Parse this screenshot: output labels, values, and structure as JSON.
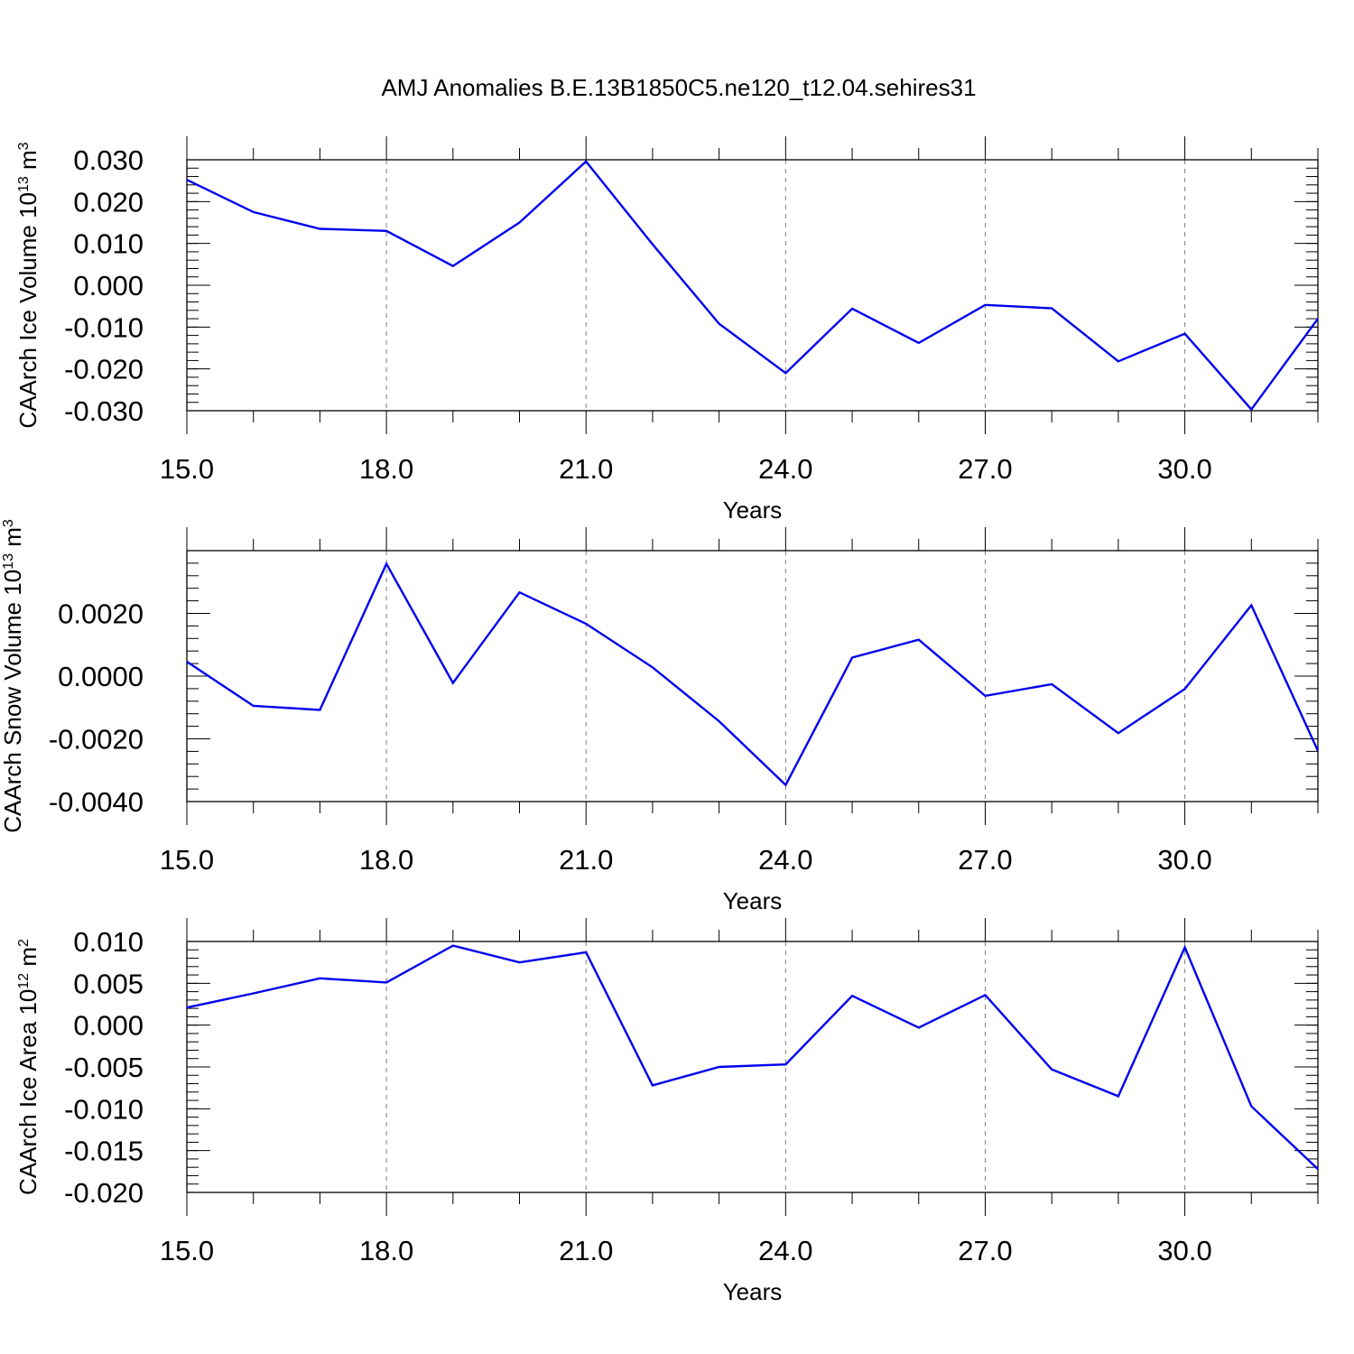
{
  "title": "AMJ Anomalies B.E.13B1850C5.ne120_t12.04.sehires31",
  "colors": {
    "series": "#0000ee",
    "frame": "#000000",
    "grid": "#808080"
  },
  "chart_data": [
    {
      "type": "line",
      "xlabel": "Years",
      "ylabel": {
        "main": "CAArch Ice Volume 10",
        "exp": "13",
        "unit": " m",
        "unit_exp": "3"
      },
      "xlim": [
        15,
        32
      ],
      "ylim": [
        -0.03,
        0.03
      ],
      "x_major_ticks": [
        15,
        18,
        21,
        24,
        27,
        30
      ],
      "x_tick_labels": [
        "15.0",
        "18.0",
        "21.0",
        "24.0",
        "27.0",
        "30.0"
      ],
      "x_minor_ticks": [
        16,
        17,
        19,
        20,
        22,
        23,
        25,
        26,
        28,
        29,
        31,
        32
      ],
      "y_major_ticks": [
        -0.03,
        -0.02,
        -0.01,
        0.0,
        0.01,
        0.02,
        0.03
      ],
      "y_tick_labels": [
        "-0.030",
        "-0.020",
        "-0.010",
        "0.000",
        "0.010",
        "0.020",
        "0.030"
      ],
      "y_minor_step": 0.002,
      "grid": "x-dashed",
      "series": [
        {
          "x": [
            15,
            16,
            17,
            18,
            19,
            20,
            21,
            22,
            23,
            24,
            25,
            26,
            27,
            28,
            29,
            30,
            31,
            32
          ],
          "y": [
            0.0252,
            0.0175,
            0.0135,
            0.013,
            0.0046,
            0.015,
            0.0296,
            0.0098,
            -0.0092,
            -0.021,
            -0.0056,
            -0.0138,
            -0.0047,
            -0.0055,
            -0.0182,
            -0.0116,
            -0.0297,
            -0.008
          ]
        }
      ]
    },
    {
      "type": "line",
      "xlabel": "Years",
      "ylabel": {
        "main": "CAArch Snow Volume 10",
        "exp": "13",
        "unit": " m",
        "unit_exp": "3"
      },
      "xlim": [
        15,
        32
      ],
      "ylim": [
        -0.004,
        0.004
      ],
      "x_major_ticks": [
        15,
        18,
        21,
        24,
        27,
        30
      ],
      "x_tick_labels": [
        "15.0",
        "18.0",
        "21.0",
        "24.0",
        "27.0",
        "30.0"
      ],
      "x_minor_ticks": [
        16,
        17,
        19,
        20,
        22,
        23,
        25,
        26,
        28,
        29,
        31,
        32
      ],
      "y_major_ticks": [
        -0.004,
        -0.002,
        0.0,
        0.002
      ],
      "y_tick_labels": [
        "-0.0040",
        "-0.0020",
        "0.0000",
        "0.0020"
      ],
      "y_extra_major_ticks": [
        0.004
      ],
      "y_minor_step": 0.0004,
      "grid": "x-dashed",
      "series": [
        {
          "x": [
            15,
            16,
            17,
            18,
            19,
            20,
            21,
            22,
            23,
            24,
            25,
            26,
            27,
            28,
            29,
            30,
            31,
            32
          ],
          "y": [
            0.00046,
            -0.00095,
            -0.00108,
            0.00358,
            -0.00022,
            0.00267,
            0.00167,
            0.00028,
            -0.00144,
            -0.00347,
            0.00059,
            0.00116,
            -0.00063,
            -0.00026,
            -0.00182,
            -0.00041,
            0.00226,
            -0.00238
          ]
        }
      ]
    },
    {
      "type": "line",
      "xlabel": "Years",
      "ylabel": {
        "main": "CAArch Ice Area 10",
        "exp": "12",
        "unit": " m",
        "unit_exp": "2"
      },
      "xlim": [
        15,
        32
      ],
      "ylim": [
        -0.02,
        0.01
      ],
      "x_major_ticks": [
        15,
        18,
        21,
        24,
        27,
        30
      ],
      "x_tick_labels": [
        "15.0",
        "18.0",
        "21.0",
        "24.0",
        "27.0",
        "30.0"
      ],
      "x_minor_ticks": [
        16,
        17,
        19,
        20,
        22,
        23,
        25,
        26,
        28,
        29,
        31,
        32
      ],
      "y_major_ticks": [
        -0.02,
        -0.015,
        -0.01,
        -0.005,
        0.0,
        0.005,
        0.01
      ],
      "y_tick_labels": [
        "-0.020",
        "-0.015",
        "-0.010",
        "-0.005",
        "0.000",
        "0.005",
        "0.010"
      ],
      "y_minor_step": 0.001,
      "grid": "x-dashed",
      "series": [
        {
          "x": [
            15,
            16,
            17,
            18,
            19,
            20,
            21,
            22,
            23,
            24,
            25,
            26,
            27,
            28,
            29,
            30,
            31,
            32
          ],
          "y": [
            0.0021,
            0.0038,
            0.0056,
            0.0051,
            0.0095,
            0.0075,
            0.0087,
            -0.0072,
            -0.005,
            -0.0047,
            0.0035,
            -0.0003,
            0.0036,
            -0.0053,
            -0.0085,
            0.0093,
            -0.0097,
            -0.0172
          ]
        }
      ]
    }
  ]
}
